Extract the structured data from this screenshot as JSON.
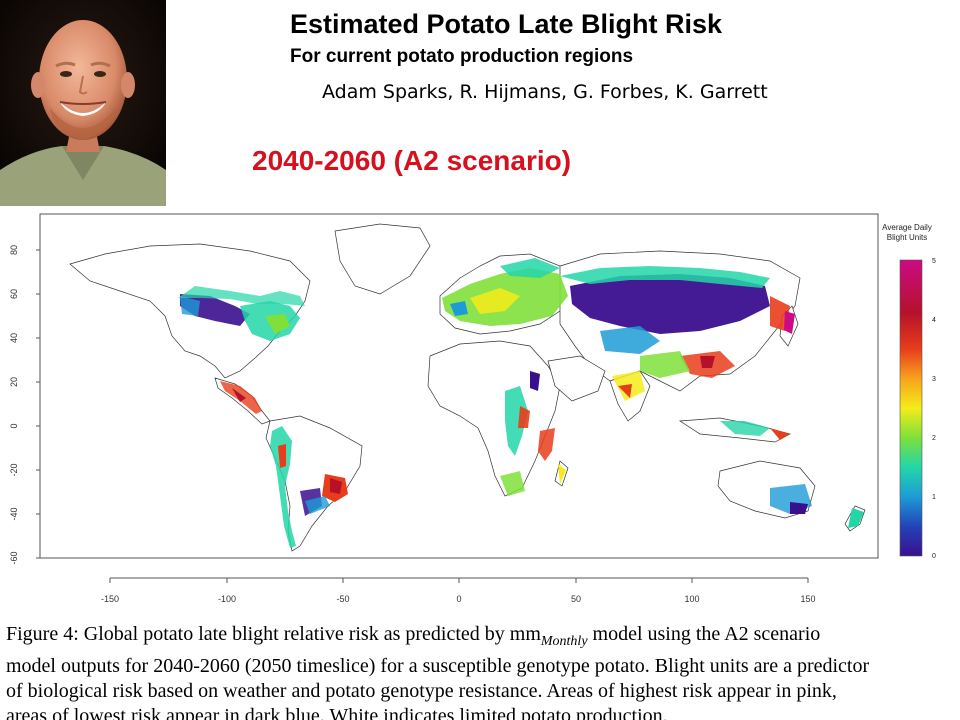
{
  "header": {
    "title": "Estimated Potato Late Blight Risk",
    "subtitle": "For current potato production regions",
    "authors": "Adam Sparks, R. Hijmans, G. Forbes, K. Garrett",
    "scenario": "2040-2060 (A2 scenario)"
  },
  "map": {
    "y_ticks": [
      "80",
      "60",
      "40",
      "20",
      "0",
      "-20",
      "-40",
      "-60"
    ],
    "x_ticks": [
      "-150",
      "-100",
      "-50",
      "0",
      "50",
      "100",
      "150"
    ],
    "legend": {
      "title_line1": "Average Daily",
      "title_line2": "Blight Units",
      "ticks": [
        "5",
        "4",
        "3",
        "2",
        "1",
        "0"
      ],
      "colors": [
        "#cc0a85",
        "#b5122a",
        "#e83d1b",
        "#f7a21c",
        "#f5ec19",
        "#7fe03a",
        "#23d6a8",
        "#1d9bd6",
        "#2343b8",
        "#3a0f8e"
      ]
    }
  },
  "caption": {
    "line1_a": "Figure 4:  Global potato late blight relative risk as predicted by mm",
    "line1_sub": "Monthly",
    "line1_b": " model using the A2 scenario",
    "line2": "model outputs for 2040-2060 (2050 timeslice) for a susceptible genotype potato. Blight units are a predictor",
    "line3": "of biological risk based on weather and potato genotype resistance.  Areas of highest risk appear in pink,",
    "line4": "areas of lowest risk appear in dark blue.  White indicates limited potato production."
  }
}
